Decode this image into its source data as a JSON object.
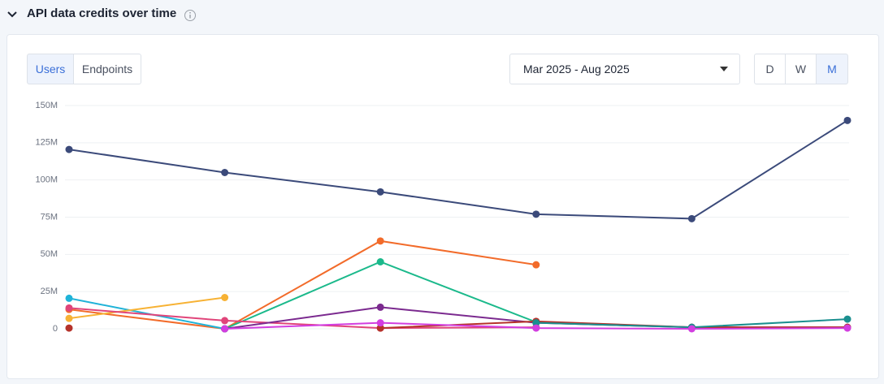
{
  "header": {
    "title": "API data credits over time"
  },
  "tabs": [
    "Users",
    "Endpoints"
  ],
  "date_range": "Mar 2025 - Aug 2025",
  "granularity": [
    "D",
    "W",
    "M"
  ],
  "chart_data": {
    "type": "line",
    "categories": [
      null,
      null,
      null,
      null,
      null,
      null
    ],
    "ylim": [
      0,
      150000000
    ],
    "yticks": [
      0,
      {
        "value": 25000000,
        "label": "25M"
      },
      {
        "value": 50000000,
        "label": "50M"
      },
      {
        "value": 75000000,
        "label": "75M"
      },
      {
        "value": 100000000,
        "label": "100M"
      },
      {
        "value": 125000000,
        "label": "125M"
      },
      {
        "value": 150000000,
        "label": "150M"
      }
    ],
    "grid": true,
    "series": [
      {
        "color": "#3b4a7a",
        "values": [
          120500000,
          105000000,
          92000000,
          77000000,
          74000000,
          140000000
        ]
      },
      {
        "color": "#f26b2a",
        "values": [
          13000000,
          0,
          59000000,
          43000000,
          null,
          null
        ]
      },
      {
        "color": "#1bb98b",
        "values": [
          null,
          0,
          45000000,
          4500000,
          null,
          null
        ]
      },
      {
        "color": "#1fb3d8",
        "values": [
          20500000,
          0,
          null,
          null,
          null,
          null
        ]
      },
      {
        "color": "#f7b234",
        "values": [
          7000000,
          21000000,
          null,
          null,
          null,
          null
        ]
      },
      {
        "color": "#e0457a",
        "values": [
          14000000,
          5500000,
          500000,
          1000000,
          null,
          null
        ]
      },
      {
        "color": "#7b2a8f",
        "values": [
          null,
          0,
          14500000,
          4000000,
          1000000,
          1000000
        ]
      },
      {
        "color": "#b5322a",
        "values": [
          500000,
          null,
          500000,
          5000000,
          1000000,
          1000000
        ]
      },
      {
        "color": "#1a8f8f",
        "values": [
          null,
          null,
          null,
          4000000,
          1000000,
          6500000
        ]
      },
      {
        "color": "#d23ee0",
        "values": [
          null,
          0,
          4000000,
          500000,
          0,
          500000
        ]
      }
    ]
  }
}
